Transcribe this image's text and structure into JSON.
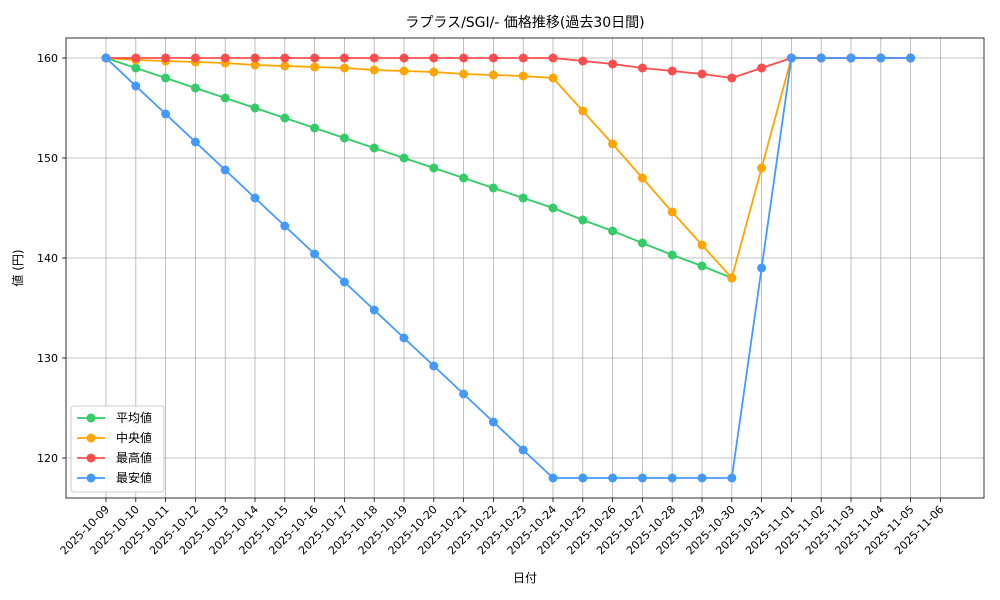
{
  "chart_data": {
    "type": "line",
    "title": "ラプラス/SGI/- 価格推移(過去30日間)",
    "xlabel": "日付",
    "ylabel": "値 (円)",
    "ylim": [
      116,
      162
    ],
    "yticks": [
      120,
      130,
      140,
      150,
      160
    ],
    "grid": true,
    "legend_position": "lower-left",
    "categories": [
      "2025-10-09",
      "2025-10-10",
      "2025-10-11",
      "2025-10-12",
      "2025-10-13",
      "2025-10-14",
      "2025-10-15",
      "2025-10-16",
      "2025-10-17",
      "2025-10-18",
      "2025-10-19",
      "2025-10-20",
      "2025-10-21",
      "2025-10-22",
      "2025-10-23",
      "2025-10-24",
      "2025-10-25",
      "2025-10-26",
      "2025-10-27",
      "2025-10-28",
      "2025-10-29",
      "2025-10-30",
      "2025-10-31",
      "2025-11-01",
      "2025-11-02",
      "2025-11-03",
      "2025-11-04",
      "2025-11-05",
      "2025-11-06"
    ],
    "series": [
      {
        "name": "平均値",
        "color": "#33cc66",
        "values": [
          160,
          159,
          158,
          157,
          156,
          155,
          154,
          153,
          152,
          151,
          150,
          149,
          148,
          147,
          146,
          145,
          143.8,
          142.7,
          141.5,
          140.3,
          139.2,
          138,
          null,
          160,
          160,
          160,
          160,
          160,
          null
        ]
      },
      {
        "name": "中央値",
        "color": "#ffa500",
        "values": [
          160,
          159.8,
          159.7,
          159.6,
          159.5,
          159.3,
          159.2,
          159.1,
          159,
          158.8,
          158.7,
          158.6,
          158.4,
          158.3,
          158.2,
          158,
          154.7,
          151.4,
          148,
          144.6,
          141.3,
          138,
          149,
          160,
          160,
          160,
          160,
          160,
          null
        ]
      },
      {
        "name": "最高値",
        "color": "#ff4d4d",
        "values": [
          160,
          160,
          160,
          160,
          160,
          160,
          160,
          160,
          160,
          160,
          160,
          160,
          160,
          160,
          160,
          160,
          159.7,
          159.4,
          159,
          158.7,
          158.4,
          158,
          159,
          160,
          160,
          160,
          160,
          160,
          null
        ]
      },
      {
        "name": "最安値",
        "color": "#4499ff",
        "values": [
          160,
          157.2,
          154.4,
          151.6,
          148.8,
          146,
          143.2,
          140.4,
          137.6,
          134.8,
          132,
          129.2,
          126.4,
          123.6,
          120.8,
          118,
          118,
          118,
          118,
          118,
          118,
          118,
          139,
          160,
          160,
          160,
          160,
          160,
          null
        ]
      }
    ]
  }
}
